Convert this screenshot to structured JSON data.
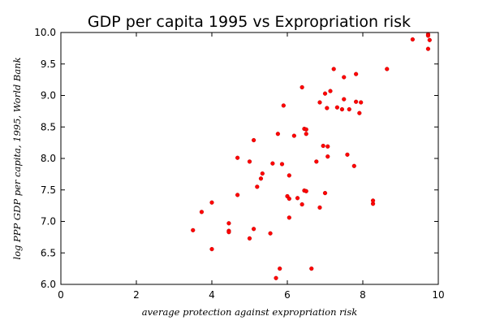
{
  "chart_data": {
    "type": "scatter",
    "title": "GDP per capita 1995 vs Expropriation risk",
    "xlabel": "average protection against expropriation risk",
    "ylabel": "log PPP GDP per capita, 1995, World Bank",
    "xlim": [
      0,
      10
    ],
    "ylim": [
      6.0,
      10.0
    ],
    "x_ticks": [
      "0",
      "2",
      "4",
      "6",
      "8",
      "10"
    ],
    "y_ticks": [
      "6.0",
      "6.5",
      "7.0",
      "7.5",
      "8.0",
      "8.5",
      "9.0",
      "9.5",
      "10.0"
    ],
    "grid": false,
    "legend": "none",
    "marker_color": "#ff0000",
    "points": [
      {
        "x": 3.5,
        "y": 6.86
      },
      {
        "x": 3.73,
        "y": 7.15
      },
      {
        "x": 4.0,
        "y": 7.3
      },
      {
        "x": 4.0,
        "y": 6.56
      },
      {
        "x": 4.45,
        "y": 6.97
      },
      {
        "x": 4.45,
        "y": 6.85
      },
      {
        "x": 4.45,
        "y": 6.83
      },
      {
        "x": 4.68,
        "y": 8.01
      },
      {
        "x": 4.68,
        "y": 7.42
      },
      {
        "x": 5.0,
        "y": 7.95
      },
      {
        "x": 5.0,
        "y": 6.73
      },
      {
        "x": 5.11,
        "y": 8.29
      },
      {
        "x": 5.11,
        "y": 6.88
      },
      {
        "x": 5.2,
        "y": 7.55
      },
      {
        "x": 5.3,
        "y": 7.68
      },
      {
        "x": 5.34,
        "y": 7.76
      },
      {
        "x": 5.55,
        "y": 6.81
      },
      {
        "x": 5.61,
        "y": 7.92
      },
      {
        "x": 5.7,
        "y": 6.1
      },
      {
        "x": 5.75,
        "y": 8.39
      },
      {
        "x": 5.8,
        "y": 6.25
      },
      {
        "x": 5.86,
        "y": 7.91
      },
      {
        "x": 5.9,
        "y": 8.84
      },
      {
        "x": 6.0,
        "y": 7.4
      },
      {
        "x": 6.05,
        "y": 7.36
      },
      {
        "x": 6.05,
        "y": 7.73
      },
      {
        "x": 6.05,
        "y": 7.06
      },
      {
        "x": 6.18,
        "y": 8.36
      },
      {
        "x": 6.27,
        "y": 7.37
      },
      {
        "x": 6.39,
        "y": 9.13
      },
      {
        "x": 6.39,
        "y": 7.27
      },
      {
        "x": 6.45,
        "y": 8.47
      },
      {
        "x": 6.45,
        "y": 7.49
      },
      {
        "x": 6.5,
        "y": 8.39
      },
      {
        "x": 6.5,
        "y": 8.46
      },
      {
        "x": 6.5,
        "y": 7.48
      },
      {
        "x": 6.64,
        "y": 6.25
      },
      {
        "x": 6.77,
        "y": 7.95
      },
      {
        "x": 6.86,
        "y": 8.89
      },
      {
        "x": 6.86,
        "y": 7.22
      },
      {
        "x": 6.95,
        "y": 8.2
      },
      {
        "x": 7.0,
        "y": 9.03
      },
      {
        "x": 7.0,
        "y": 7.45
      },
      {
        "x": 7.05,
        "y": 8.8
      },
      {
        "x": 7.07,
        "y": 8.19
      },
      {
        "x": 7.07,
        "y": 8.03
      },
      {
        "x": 7.14,
        "y": 9.07
      },
      {
        "x": 7.23,
        "y": 9.42
      },
      {
        "x": 7.32,
        "y": 8.81
      },
      {
        "x": 7.45,
        "y": 8.78
      },
      {
        "x": 7.5,
        "y": 9.29
      },
      {
        "x": 7.5,
        "y": 8.94
      },
      {
        "x": 7.59,
        "y": 8.06
      },
      {
        "x": 7.64,
        "y": 8.78
      },
      {
        "x": 7.77,
        "y": 7.88
      },
      {
        "x": 7.82,
        "y": 9.34
      },
      {
        "x": 7.82,
        "y": 8.9
      },
      {
        "x": 7.91,
        "y": 8.72
      },
      {
        "x": 7.95,
        "y": 8.89
      },
      {
        "x": 8.27,
        "y": 7.28
      },
      {
        "x": 8.27,
        "y": 7.33
      },
      {
        "x": 8.64,
        "y": 9.42
      },
      {
        "x": 9.32,
        "y": 9.89
      },
      {
        "x": 9.73,
        "y": 9.97
      },
      {
        "x": 9.73,
        "y": 9.74
      },
      {
        "x": 9.77,
        "y": 9.88
      },
      {
        "x": 9.73,
        "y": 9.95
      }
    ]
  }
}
